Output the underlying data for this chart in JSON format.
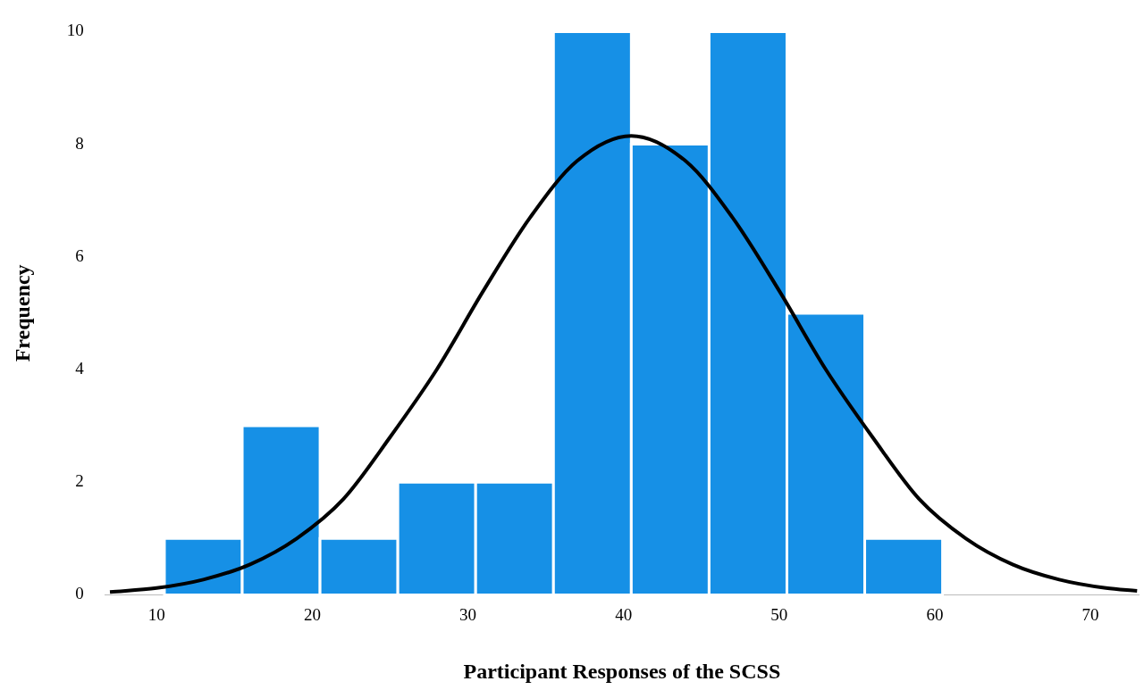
{
  "chart_data": {
    "type": "histogram",
    "xlabel": "Participant Responses of the SCSS",
    "ylabel": "Frequency",
    "bins": [
      10.5,
      15.5,
      20.5,
      25.5,
      30.5,
      35.5,
      40.5,
      45.5,
      50.5,
      55.5,
      60.5
    ],
    "values": [
      1,
      3,
      1,
      2,
      2,
      10,
      8,
      10,
      5,
      1
    ],
    "color": "#1690e6",
    "series": [
      {
        "type": "line",
        "color": "#000000",
        "x": [
          7,
          10,
          13,
          16,
          19,
          22,
          25,
          28,
          31,
          34,
          37,
          40.5,
          44,
          47,
          50,
          53,
          56,
          59,
          62,
          65,
          68,
          71,
          73
        ],
        "values": [
          0.05,
          0.12,
          0.27,
          0.54,
          1.0,
          1.7,
          2.8,
          4.0,
          5.4,
          6.7,
          7.7,
          8.15,
          7.7,
          6.7,
          5.4,
          4.0,
          2.8,
          1.7,
          1.0,
          0.54,
          0.27,
          0.12,
          0.07
        ]
      }
    ],
    "xlim": [
      6.7,
      73.1
    ],
    "xticks": [
      10,
      20,
      30,
      40,
      50,
      60,
      70
    ],
    "ylim": [
      0,
      10
    ],
    "yticks": [
      0,
      2,
      4,
      6,
      8,
      10
    ],
    "grid": false,
    "legend": false,
    "marker": "none",
    "line_style": "solid"
  }
}
